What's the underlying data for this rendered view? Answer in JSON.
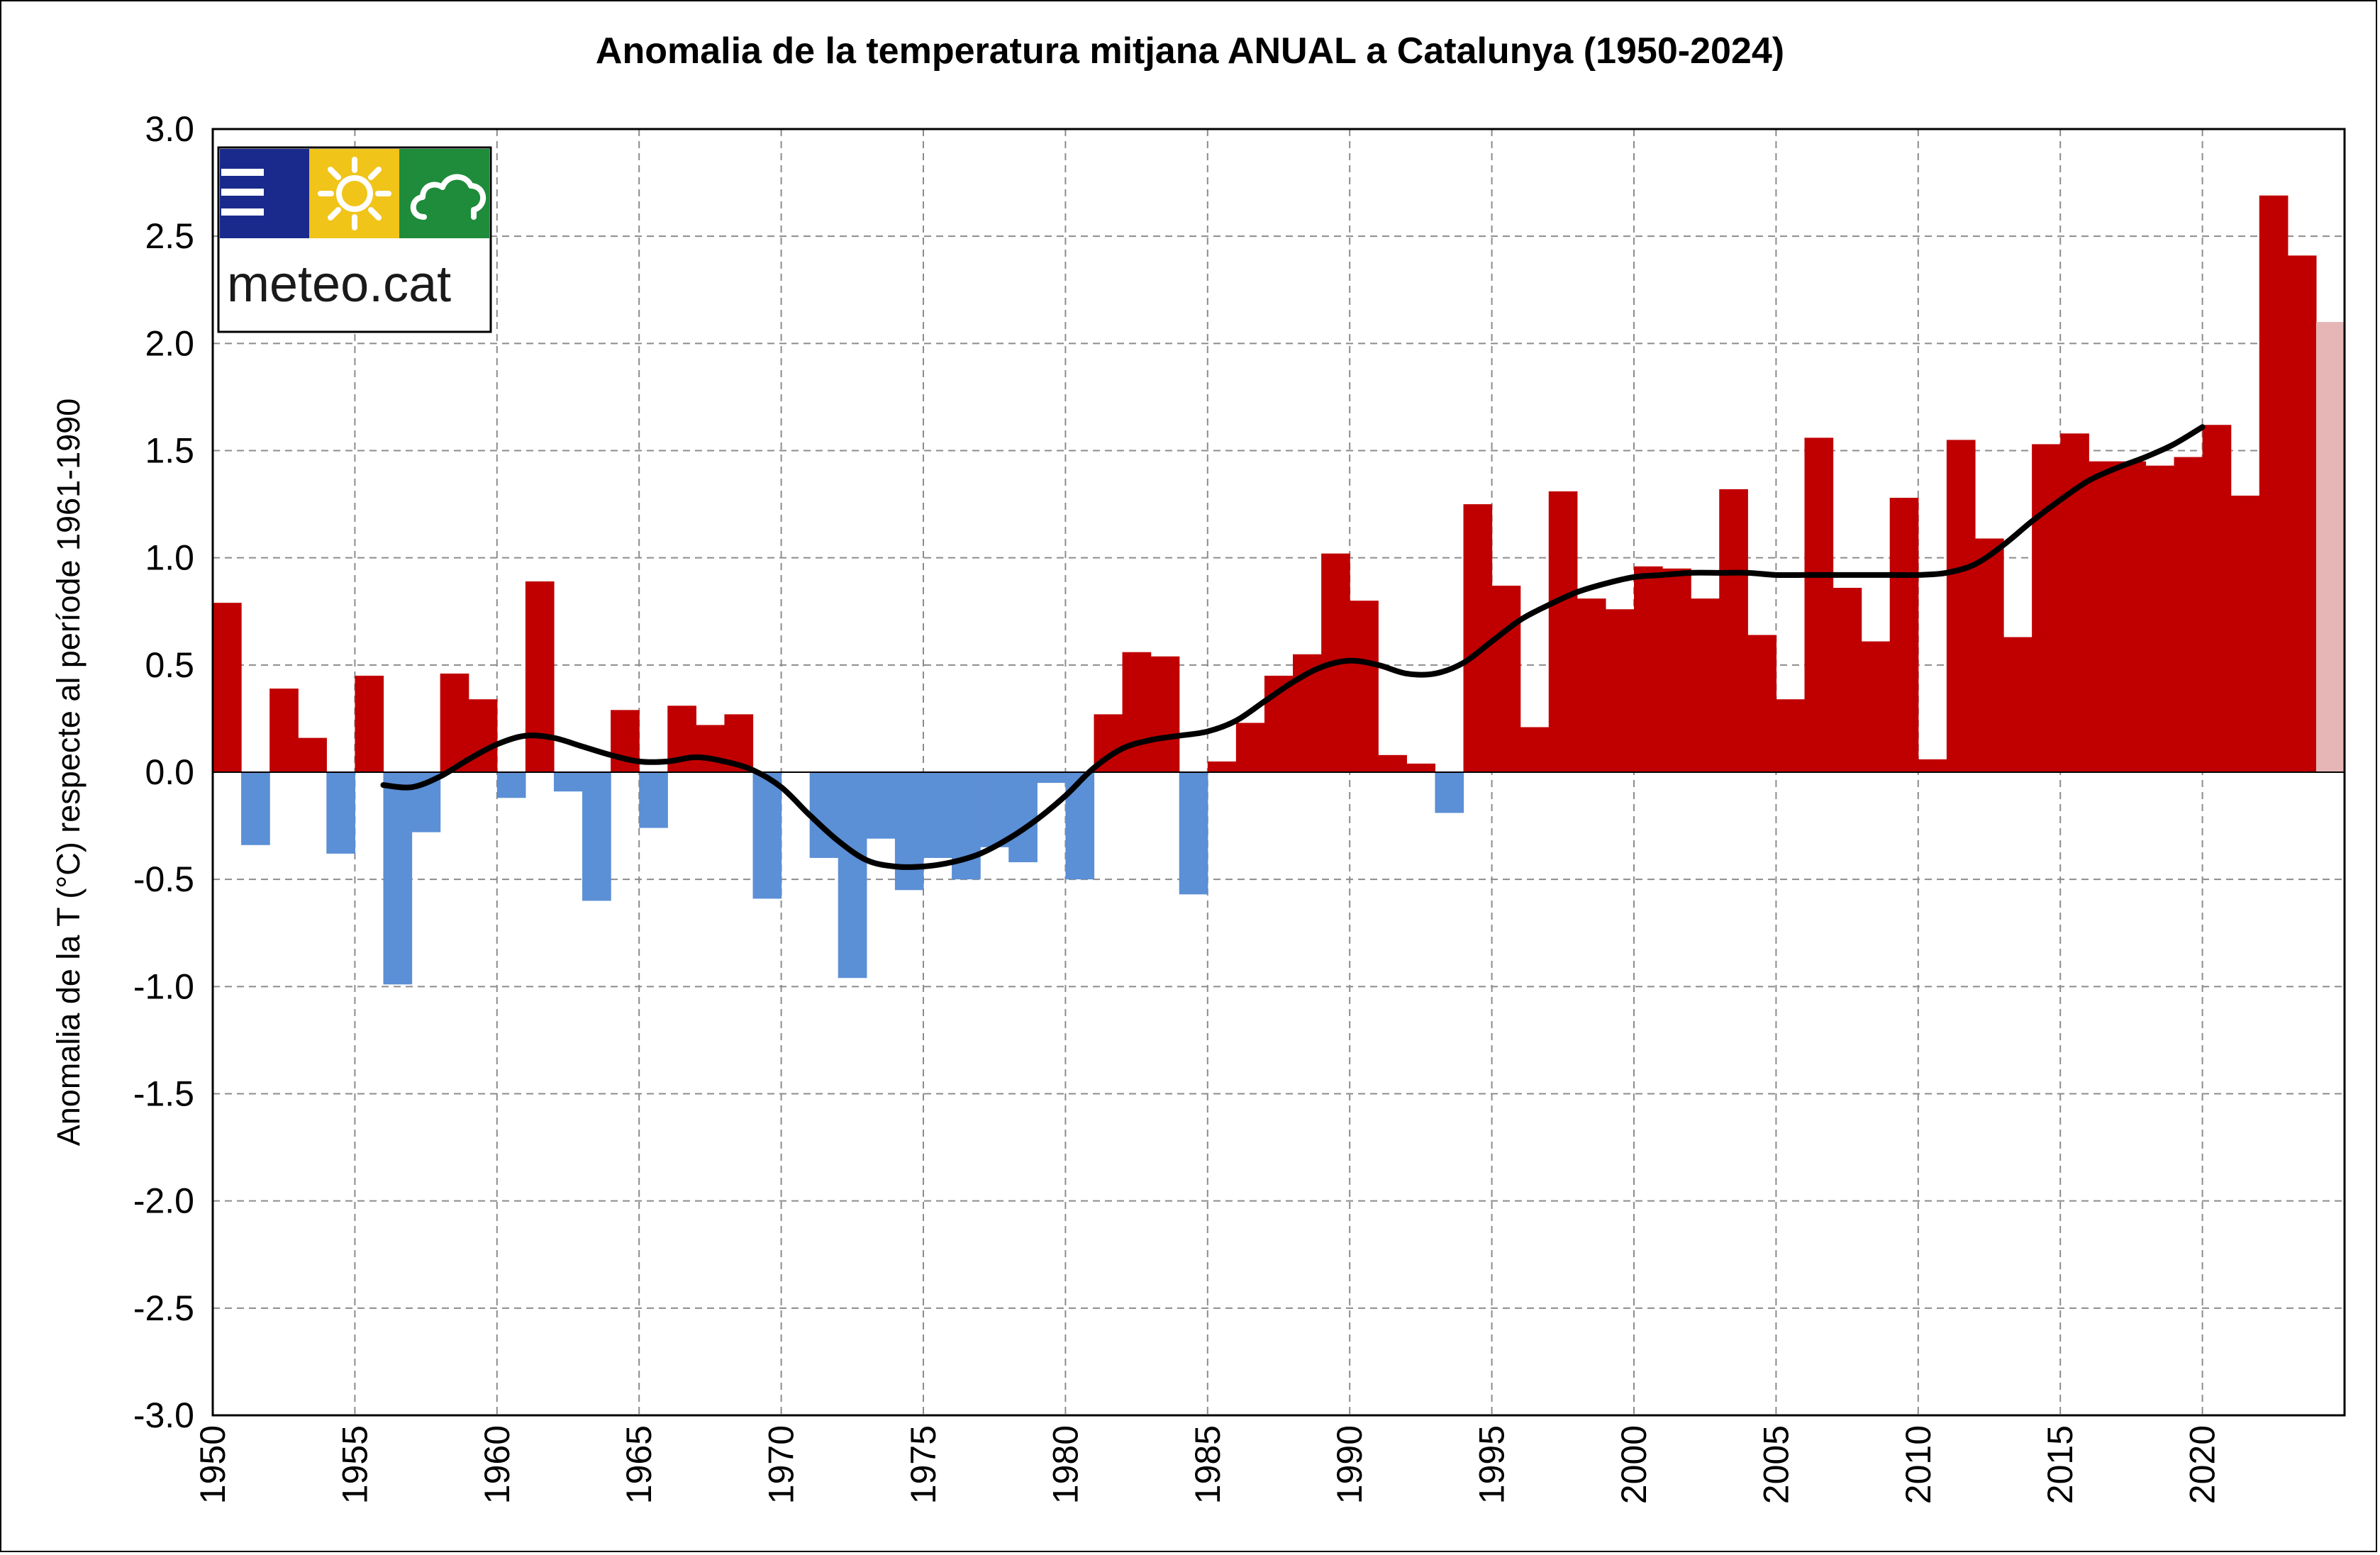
{
  "chart_data": {
    "type": "bar",
    "title": "Anomalia de la temperatura mitjana ANUAL a Catalunya (1950-2024)",
    "ylabel": "Anomalia de la T (°C) respecte al període 1961-1990",
    "xlabel": "",
    "ylim": [
      -3.0,
      3.0
    ],
    "ytick_values": [
      3.0,
      2.5,
      2.0,
      1.5,
      1.0,
      0.5,
      0.0,
      -0.5,
      -1.0,
      -1.5,
      -2.0,
      -2.5,
      -3.0
    ],
    "ytick_labels": [
      "3.0",
      "2.5",
      "2.0",
      "1.5",
      "1.0",
      "0.5",
      "0.0",
      "-0.5",
      "-1.0",
      "-1.5",
      "-2.0",
      "-2.5",
      "-3.0"
    ],
    "xtick_labels": [
      "1950",
      "1955",
      "1960",
      "1965",
      "1970",
      "1975",
      "1980",
      "1985",
      "1990",
      "1995",
      "2000",
      "2005",
      "2010",
      "2015",
      "2020"
    ],
    "grid": true,
    "years": [
      1950,
      1951,
      1952,
      1953,
      1954,
      1955,
      1956,
      1957,
      1958,
      1959,
      1960,
      1961,
      1962,
      1963,
      1964,
      1965,
      1966,
      1967,
      1968,
      1969,
      1970,
      1971,
      1972,
      1973,
      1974,
      1975,
      1976,
      1977,
      1978,
      1979,
      1980,
      1981,
      1982,
      1983,
      1984,
      1985,
      1986,
      1987,
      1988,
      1989,
      1990,
      1991,
      1992,
      1993,
      1994,
      1995,
      1996,
      1997,
      1998,
      1999,
      2000,
      2001,
      2002,
      2003,
      2004,
      2005,
      2006,
      2007,
      2008,
      2009,
      2010,
      2011,
      2012,
      2013,
      2014,
      2015,
      2016,
      2017,
      2018,
      2019,
      2020,
      2021,
      2022,
      2023,
      2024
    ],
    "values": [
      0.79,
      -0.34,
      0.39,
      0.16,
      -0.38,
      0.45,
      -0.99,
      -0.28,
      0.46,
      0.34,
      -0.12,
      0.89,
      -0.09,
      -0.6,
      0.29,
      -0.26,
      0.31,
      0.22,
      0.27,
      -0.59,
      0.0,
      -0.4,
      -0.96,
      -0.31,
      -0.55,
      -0.4,
      -0.5,
      -0.35,
      -0.42,
      -0.05,
      -0.5,
      0.27,
      0.56,
      0.54,
      -0.57,
      0.05,
      0.23,
      0.45,
      0.55,
      1.02,
      0.8,
      0.08,
      0.04,
      -0.19,
      1.25,
      0.87,
      0.21,
      1.31,
      0.81,
      0.76,
      0.96,
      0.95,
      0.81,
      1.32,
      0.64,
      0.34,
      1.56,
      0.86,
      0.61,
      1.28,
      0.06,
      1.55,
      1.09,
      0.63,
      1.53,
      1.58,
      1.45,
      1.45,
      1.43,
      1.47,
      1.62,
      1.29,
      2.69,
      2.41,
      2.1
    ],
    "highlight_last_bar": true,
    "trend_line": {
      "name": "",
      "x": [
        1955.5,
        1956.5,
        1957.5,
        1958.5,
        1959.5,
        1960.5,
        1961.5,
        1962.5,
        1963.5,
        1964.5,
        1965.5,
        1966.5,
        1967.5,
        1968.5,
        1969.5,
        1970.5,
        1971.5,
        1972.5,
        1973.5,
        1974.5,
        1975.5,
        1976.5,
        1977.5,
        1978.5,
        1979.5,
        1980.5,
        1981.5,
        1982.5,
        1983.5,
        1984.5,
        1985.5,
        1986.5,
        1987.5,
        1988.5,
        1989.5,
        1990.5,
        1991.5,
        1992.5,
        1993.5,
        1994.5,
        1995.5,
        1996.5,
        1997.5,
        1998.5,
        1999.5,
        2000.5,
        2001.5,
        2002.5,
        2003.5,
        2004.5,
        2005.5,
        2006.5,
        2007.5,
        2008.5,
        2009.5,
        2010.5,
        2011.5,
        2012.5,
        2013.5,
        2014.5,
        2015.5,
        2016.5,
        2017.5,
        2018.5,
        2019.5
      ],
      "y": [
        -0.06,
        -0.07,
        -0.02,
        0.06,
        0.13,
        0.17,
        0.16,
        0.12,
        0.08,
        0.05,
        0.05,
        0.07,
        0.05,
        0.01,
        -0.07,
        -0.2,
        -0.32,
        -0.41,
        -0.44,
        -0.44,
        -0.42,
        -0.38,
        -0.31,
        -0.22,
        -0.11,
        0.02,
        0.11,
        0.15,
        0.17,
        0.19,
        0.24,
        0.33,
        0.42,
        0.49,
        0.52,
        0.5,
        0.46,
        0.46,
        0.51,
        0.61,
        0.71,
        0.78,
        0.84,
        0.88,
        0.91,
        0.92,
        0.93,
        0.93,
        0.93,
        0.92,
        0.92,
        0.92,
        0.92,
        0.92,
        0.92,
        0.93,
        0.97,
        1.06,
        1.17,
        1.27,
        1.36,
        1.42,
        1.47,
        1.53,
        1.61
      ]
    },
    "colors": {
      "positive": "#c00000",
      "negative": "#5b8fd6",
      "last": "#e6b5b5",
      "trend": "#000000"
    }
  },
  "logo": {
    "text": "meteo.cat",
    "icons": [
      "menu-lines-icon",
      "sun-icon",
      "cloud-icon"
    ],
    "colors": {
      "blue": "#1a2a8c",
      "yellow": "#f0c419",
      "green": "#1e8c3a"
    }
  }
}
